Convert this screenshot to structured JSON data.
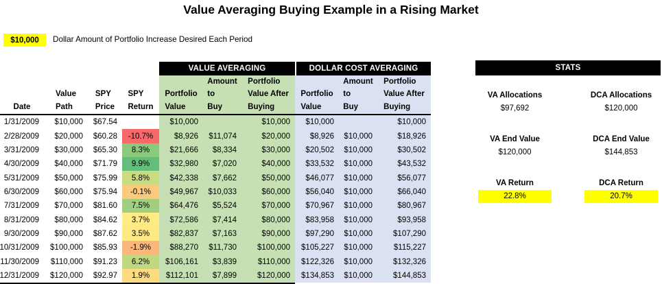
{
  "title": "Value Averaging Buying Example in a Rising Market",
  "assumption": {
    "amount": "$10,000",
    "description": "Dollar Amount of Portfolio Increase Desired Each Period"
  },
  "colors": {
    "highlight_yellow": "#FFFF00",
    "va_section_bg": "#C6E0B4",
    "dca_section_bg": "#D9E1F2",
    "section_bar_bg": "#000000",
    "section_bar_text": "#FFFFFF"
  },
  "table": {
    "sections": {
      "va": "VALUE AVERAGING",
      "dca": "DOLLAR COST AVERAGING"
    },
    "columns": [
      {
        "name": "date",
        "lines": [
          "Date"
        ]
      },
      {
        "name": "value-path",
        "lines": [
          "Value",
          "Path"
        ]
      },
      {
        "name": "spy-price",
        "lines": [
          "SPY",
          "Price"
        ]
      },
      {
        "name": "spy-return",
        "lines": [
          "SPY",
          "Return"
        ]
      },
      {
        "name": "va-portfolio-value",
        "lines": [
          "Portfolio",
          "Value"
        ]
      },
      {
        "name": "va-amount-to-buy",
        "lines": [
          "Amount",
          "to",
          "Buy"
        ]
      },
      {
        "name": "va-value-after-buying",
        "lines": [
          "Portfolio",
          "Value After",
          "Buying"
        ]
      },
      {
        "name": "dca-portfolio-value",
        "lines": [
          "Portfolio",
          "Value"
        ]
      },
      {
        "name": "dca-amount-to-buy",
        "lines": [
          "Amount",
          "to",
          "Buy"
        ]
      },
      {
        "name": "dca-value-after-buying",
        "lines": [
          "Portfolio",
          "Value After",
          "Buying"
        ]
      }
    ],
    "rows": [
      {
        "cells": [
          "1/31/2009",
          "$10,000",
          "$67.54",
          "",
          "$10,000",
          "",
          "$10,000",
          "$10,000",
          "",
          "$10,000"
        ],
        "return_color": ""
      },
      {
        "cells": [
          "2/28/2009",
          "$20,000",
          "$60.28",
          "-10.7%",
          "$8,926",
          "$11,074",
          "$20,000",
          "$8,926",
          "$10,000",
          "$18,926"
        ],
        "return_color": "#F8696B"
      },
      {
        "cells": [
          "3/31/2009",
          "$30,000",
          "$65.30",
          "8.3%",
          "$21,666",
          "$8,334",
          "$30,000",
          "$20,502",
          "$10,000",
          "$30,502"
        ],
        "return_color": "#8BCA7D"
      },
      {
        "cells": [
          "4/30/2009",
          "$40,000",
          "$71.79",
          "9.9%",
          "$32,980",
          "$7,020",
          "$40,000",
          "$33,532",
          "$10,000",
          "$43,532"
        ],
        "return_color": "#63BE7B"
      },
      {
        "cells": [
          "5/31/2009",
          "$50,000",
          "$75.99",
          "5.8%",
          "$42,338",
          "$7,662",
          "$50,000",
          "$46,077",
          "$10,000",
          "$56,077"
        ],
        "return_color": "#CADC81"
      },
      {
        "cells": [
          "6/30/2009",
          "$60,000",
          "$75.94",
          "-0.1%",
          "$49,967",
          "$10,033",
          "$60,000",
          "$56,040",
          "$10,000",
          "$66,040"
        ],
        "return_color": "#FDC97D"
      },
      {
        "cells": [
          "7/31/2009",
          "$70,000",
          "$81.60",
          "7.5%",
          "$64,476",
          "$5,524",
          "$70,000",
          "$70,967",
          "$10,000",
          "$80,967"
        ],
        "return_color": "#9FCF7F"
      },
      {
        "cells": [
          "8/31/2009",
          "$80,000",
          "$84.62",
          "3.7%",
          "$72,586",
          "$7,414",
          "$80,000",
          "$83,958",
          "$10,000",
          "$93,958"
        ],
        "return_color": "#FFEB84"
      },
      {
        "cells": [
          "9/30/2009",
          "$90,000",
          "$87.62",
          "3.5%",
          "$82,837",
          "$7,163",
          "$90,000",
          "$97,290",
          "$10,000",
          "$107,290"
        ],
        "return_color": "#FFE984"
      },
      {
        "cells": [
          "10/31/2009",
          "$100,000",
          "$85.93",
          "-1.9%",
          "$88,270",
          "$11,730",
          "$100,000",
          "$105,227",
          "$10,000",
          "$115,227"
        ],
        "return_color": "#FCB87A"
      },
      {
        "cells": [
          "11/30/2009",
          "$110,000",
          "$91.23",
          "6.2%",
          "$106,161",
          "$3,839",
          "$110,000",
          "$122,326",
          "$10,000",
          "$132,326"
        ],
        "return_color": "#C0D980"
      },
      {
        "cells": [
          "12/31/2009",
          "$120,000",
          "$92.97",
          "1.9%",
          "$112,101",
          "$7,899",
          "$120,000",
          "$134,853",
          "$10,000",
          "$144,853"
        ],
        "return_color": "#FEDB81"
      }
    ]
  },
  "stats": {
    "header": "STATS",
    "items": [
      {
        "label": "VA Allocations",
        "value": "$97,692",
        "highlight": false
      },
      {
        "label": "DCA Allocations",
        "value": "$120,000",
        "highlight": false
      },
      {
        "label": "VA End Value",
        "value": "$120,000",
        "highlight": false
      },
      {
        "label": "DCA End Value",
        "value": "$144,853",
        "highlight": false
      },
      {
        "label": "VA Return",
        "value": "22.8%",
        "highlight": true
      },
      {
        "label": "DCA Return",
        "value": "20.7%",
        "highlight": true
      }
    ]
  }
}
